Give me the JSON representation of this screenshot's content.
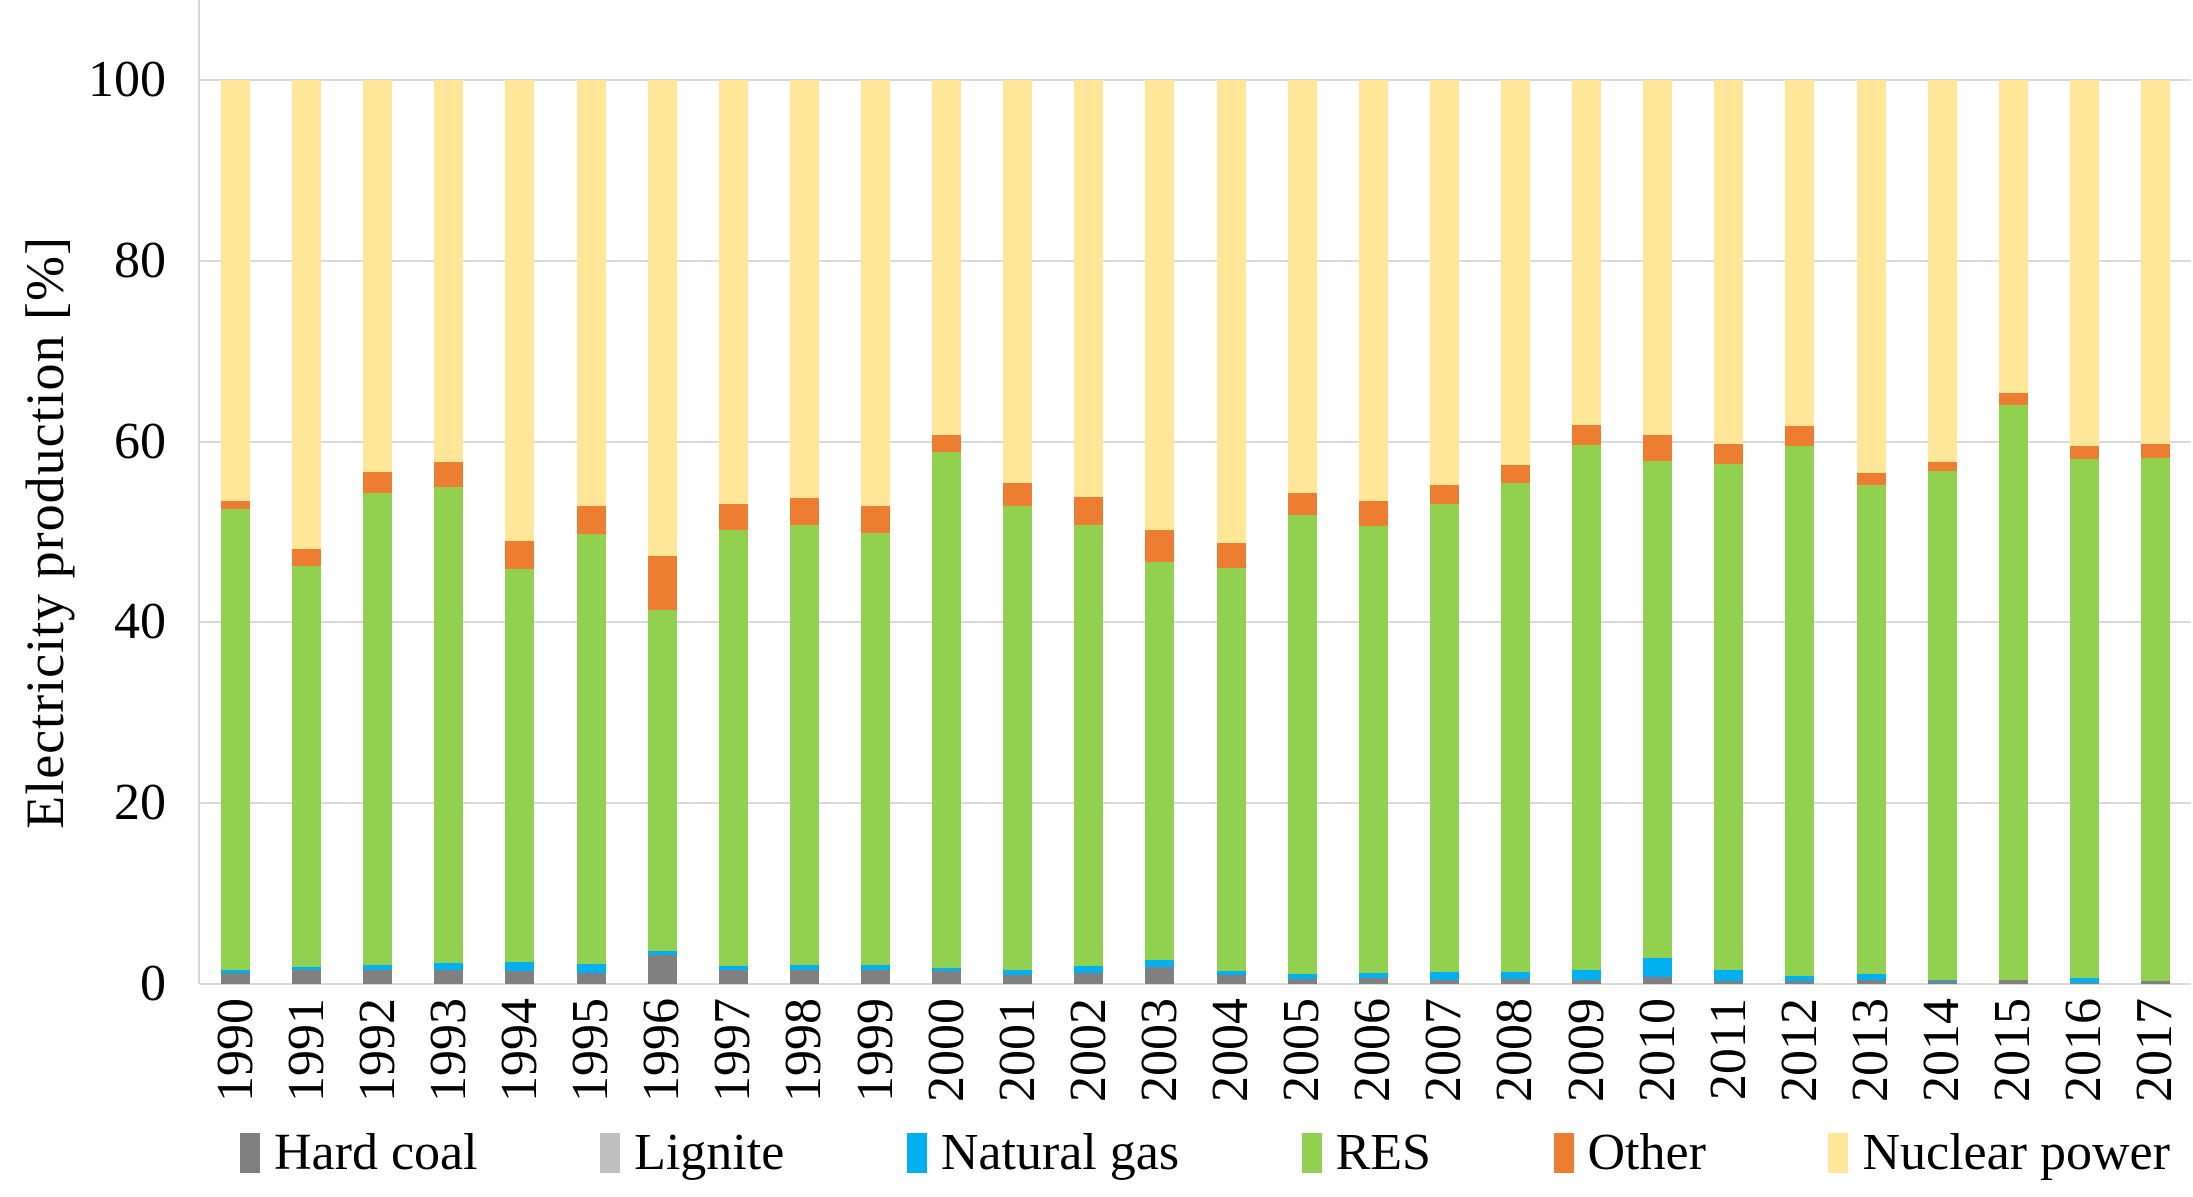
{
  "figure": {
    "background": "#FFFFFF",
    "grid_color": "#D9D9D9",
    "axis_line_color": "#D6D6D6"
  },
  "chart_data": {
    "type": "bar",
    "stacked": true,
    "title": "",
    "xlabel": "",
    "ylabel": "Electricity production [%]",
    "ylim": [
      0,
      100
    ],
    "yticks": [
      0,
      20,
      40,
      60,
      80,
      100
    ],
    "grid": true,
    "legend_position": "bottom",
    "categories": [
      "1990",
      "1991",
      "1992",
      "1993",
      "1994",
      "1995",
      "1996",
      "1997",
      "1998",
      "1999",
      "2000",
      "2001",
      "2002",
      "2003",
      "2004",
      "2005",
      "2006",
      "2007",
      "2008",
      "2009",
      "2010",
      "2011",
      "2012",
      "2013",
      "2014",
      "2015",
      "2016",
      "2017"
    ],
    "series": [
      {
        "name": "Hard coal",
        "color": "#808080",
        "values": [
          1.2,
          1.5,
          1.6,
          1.5,
          1.4,
          1.2,
          3.2,
          1.5,
          1.6,
          1.6,
          1.4,
          1.0,
          1.2,
          1.9,
          1.0,
          0.5,
          0.7,
          0.4,
          0.5,
          0.4,
          0.8,
          0.3,
          0.3,
          0.4,
          0.3,
          0.4,
          0.1,
          0.3
        ]
      },
      {
        "name": "Lignite",
        "color": "#BFBFBF",
        "values": [
          0,
          0,
          0,
          0,
          0,
          0,
          0,
          0,
          0,
          0,
          0,
          0,
          0,
          0,
          0,
          0,
          0,
          0,
          0,
          0,
          0,
          0,
          0,
          0,
          0,
          0,
          0,
          0
        ]
      },
      {
        "name": "Natural gas",
        "color": "#00B0F0",
        "values": [
          0.3,
          0.4,
          0.5,
          0.8,
          1.0,
          1.0,
          0.5,
          0.5,
          0.5,
          0.5,
          0.4,
          0.5,
          0.8,
          0.8,
          0.4,
          0.6,
          0.5,
          0.9,
          0.8,
          1.2,
          2.1,
          1.2,
          0.6,
          0.7,
          0.1,
          0.0,
          0.6,
          0.0
        ]
      },
      {
        "name": "RES",
        "color": "#92D050",
        "values": [
          51.0,
          44.3,
          52.2,
          52.7,
          43.5,
          47.6,
          37.7,
          48.2,
          48.7,
          47.8,
          57.1,
          51.4,
          48.8,
          44.0,
          44.6,
          50.8,
          49.5,
          51.8,
          54.1,
          58.0,
          54.9,
          56.0,
          58.6,
          54.1,
          56.3,
          63.6,
          57.4,
          57.9
        ]
      },
      {
        "name": "Other",
        "color": "#ED7D31",
        "values": [
          0.9,
          1.9,
          2.3,
          2.7,
          3.1,
          3.1,
          5.9,
          2.9,
          3.0,
          3.0,
          1.8,
          2.5,
          3.1,
          3.5,
          2.8,
          2.4,
          2.7,
          2.1,
          2.0,
          2.2,
          2.9,
          2.2,
          2.2,
          1.3,
          1.0,
          1.4,
          1.4,
          1.5
        ]
      },
      {
        "name": "Nuclear power",
        "color": "#FFE699",
        "values": [
          46.6,
          51.9,
          43.4,
          42.3,
          51.0,
          47.1,
          52.7,
          46.9,
          46.2,
          47.1,
          39.3,
          44.6,
          46.1,
          49.8,
          51.2,
          45.7,
          46.6,
          44.8,
          42.6,
          38.2,
          39.3,
          40.3,
          38.3,
          43.5,
          42.3,
          34.6,
          40.5,
          40.3
        ]
      }
    ]
  }
}
